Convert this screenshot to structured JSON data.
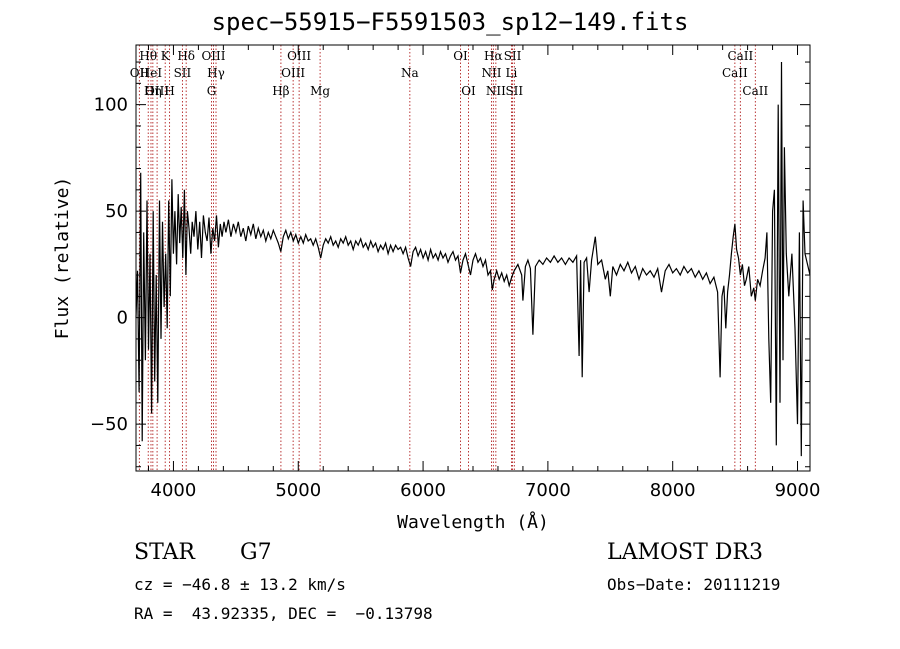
{
  "header": {
    "title": "spec−55915−F5591503_sp12−149.fits"
  },
  "info": {
    "class_label": "STAR",
    "subclass_label": "G7",
    "survey": "LAMOST DR3",
    "cz": "cz = −46.8 ± 13.2 km/s",
    "obs_date": "Obs−Date: 20111219",
    "coords": "RA =  43.92335, DEC =  −0.13798"
  },
  "chart_data": {
    "type": "line",
    "title": "spec−55915−F5591503_sp12−149.fits",
    "xlabel": "Wavelength (Å)",
    "ylabel": "Flux (relative)",
    "xlim": [
      3700,
      9100
    ],
    "ylim": [
      -72,
      128
    ],
    "xticks": [
      4000,
      5000,
      6000,
      7000,
      8000,
      9000
    ],
    "xtick_labels": [
      "4000",
      "5000",
      "6000",
      "7000",
      "8000",
      "9000"
    ],
    "yticks": [
      -50,
      0,
      50,
      100
    ],
    "ytick_labels": [
      "−50",
      "0",
      "50",
      "100"
    ],
    "line_markers": [
      {
        "name": "OII",
        "wave": 3727,
        "row": 2
      },
      {
        "name": "Hθ",
        "wave": 3798,
        "row": 1
      },
      {
        "name": "HeI",
        "wave": 3820,
        "row": 2
      },
      {
        "name": "Hη",
        "wave": 3835,
        "row": 3
      },
      {
        "name": "OIII",
        "wave": 3869,
        "row": 3
      },
      {
        "name": "K",
        "wave": 3934,
        "row": 1
      },
      {
        "name": "H",
        "wave": 3969,
        "row": 3
      },
      {
        "name": "SII",
        "wave": 4072,
        "row": 2
      },
      {
        "name": "Hδ",
        "wave": 4102,
        "row": 1
      },
      {
        "name": "G",
        "wave": 4305,
        "row": 3
      },
      {
        "name": "OIII",
        "wave": 4321,
        "row": 1
      },
      {
        "name": "Hγ",
        "wave": 4341,
        "row": 2
      },
      {
        "name": "Hβ",
        "wave": 4861,
        "row": 3
      },
      {
        "name": "OIII",
        "wave": 4959,
        "row": 2
      },
      {
        "name": "OIII",
        "wave": 5007,
        "row": 1
      },
      {
        "name": "Mg",
        "wave": 5175,
        "row": 3
      },
      {
        "name": "Na",
        "wave": 5894,
        "row": 2
      },
      {
        "name": "OI",
        "wave": 6300,
        "row": 1
      },
      {
        "name": "OI",
        "wave": 6364,
        "row": 3
      },
      {
        "name": "NII",
        "wave": 6548,
        "row": 2
      },
      {
        "name": "Hα",
        "wave": 6563,
        "row": 1
      },
      {
        "name": "NII",
        "wave": 6583,
        "row": 3
      },
      {
        "name": "Li",
        "wave": 6708,
        "row": 2
      },
      {
        "name": "SII",
        "wave": 6717,
        "row": 1
      },
      {
        "name": "SII",
        "wave": 6731,
        "row": 3
      },
      {
        "name": "CaII",
        "wave": 8498,
        "row": 2
      },
      {
        "name": "CaII",
        "wave": 8542,
        "row": 1
      },
      {
        "name": "CaII",
        "wave": 8662,
        "row": 3
      }
    ],
    "series": [
      {
        "name": "flux",
        "points": [
          [
            3700,
            0
          ],
          [
            3712,
            22
          ],
          [
            3725,
            -35
          ],
          [
            3738,
            68
          ],
          [
            3750,
            -58
          ],
          [
            3762,
            40
          ],
          [
            3775,
            -20
          ],
          [
            3788,
            55
          ],
          [
            3800,
            -15
          ],
          [
            3812,
            30
          ],
          [
            3825,
            -45
          ],
          [
            3838,
            50
          ],
          [
            3850,
            -30
          ],
          [
            3862,
            20
          ],
          [
            3875,
            -40
          ],
          [
            3888,
            55
          ],
          [
            3900,
            -10
          ],
          [
            3912,
            45
          ],
          [
            3925,
            5
          ],
          [
            3938,
            30
          ],
          [
            3950,
            -5
          ],
          [
            3962,
            55
          ],
          [
            3975,
            10
          ],
          [
            3988,
            65
          ],
          [
            4000,
            30
          ],
          [
            4012,
            50
          ],
          [
            4025,
            25
          ],
          [
            4038,
            58
          ],
          [
            4050,
            35
          ],
          [
            4062,
            52
          ],
          [
            4075,
            28
          ],
          [
            4088,
            60
          ],
          [
            4100,
            20
          ],
          [
            4112,
            50
          ],
          [
            4125,
            42
          ],
          [
            4138,
            30
          ],
          [
            4150,
            45
          ],
          [
            4165,
            38
          ],
          [
            4180,
            50
          ],
          [
            4195,
            32
          ],
          [
            4210,
            45
          ],
          [
            4225,
            28
          ],
          [
            4240,
            48
          ],
          [
            4255,
            40
          ],
          [
            4270,
            36
          ],
          [
            4285,
            47
          ],
          [
            4300,
            30
          ],
          [
            4315,
            42
          ],
          [
            4330,
            36
          ],
          [
            4345,
            48
          ],
          [
            4360,
            33
          ],
          [
            4375,
            44
          ],
          [
            4390,
            38
          ],
          [
            4405,
            45
          ],
          [
            4420,
            40
          ],
          [
            4440,
            46
          ],
          [
            4460,
            38
          ],
          [
            4480,
            44
          ],
          [
            4500,
            40
          ],
          [
            4520,
            45
          ],
          [
            4540,
            38
          ],
          [
            4560,
            42
          ],
          [
            4580,
            36
          ],
          [
            4600,
            43
          ],
          [
            4620,
            39
          ],
          [
            4640,
            44
          ],
          [
            4660,
            37
          ],
          [
            4680,
            42
          ],
          [
            4700,
            38
          ],
          [
            4720,
            41
          ],
          [
            4740,
            36
          ],
          [
            4760,
            40
          ],
          [
            4780,
            37
          ],
          [
            4800,
            41
          ],
          [
            4820,
            38
          ],
          [
            4840,
            35
          ],
          [
            4860,
            31
          ],
          [
            4880,
            38
          ],
          [
            4900,
            41
          ],
          [
            4920,
            37
          ],
          [
            4940,
            40
          ],
          [
            4960,
            36
          ],
          [
            4980,
            39
          ],
          [
            5000,
            35
          ],
          [
            5020,
            38
          ],
          [
            5040,
            35
          ],
          [
            5060,
            39
          ],
          [
            5080,
            36
          ],
          [
            5100,
            37
          ],
          [
            5120,
            34
          ],
          [
            5140,
            37
          ],
          [
            5160,
            33
          ],
          [
            5180,
            28
          ],
          [
            5200,
            34
          ],
          [
            5220,
            37
          ],
          [
            5240,
            35
          ],
          [
            5260,
            38
          ],
          [
            5280,
            34
          ],
          [
            5300,
            36
          ],
          [
            5320,
            33
          ],
          [
            5340,
            37
          ],
          [
            5360,
            35
          ],
          [
            5380,
            38
          ],
          [
            5400,
            34
          ],
          [
            5420,
            36
          ],
          [
            5440,
            32
          ],
          [
            5460,
            36
          ],
          [
            5480,
            34
          ],
          [
            5500,
            37
          ],
          [
            5520,
            33
          ],
          [
            5540,
            35
          ],
          [
            5560,
            32
          ],
          [
            5580,
            36
          ],
          [
            5600,
            33
          ],
          [
            5620,
            35
          ],
          [
            5640,
            31
          ],
          [
            5660,
            34
          ],
          [
            5680,
            32
          ],
          [
            5700,
            35
          ],
          [
            5720,
            30
          ],
          [
            5740,
            34
          ],
          [
            5760,
            31
          ],
          [
            5780,
            34
          ],
          [
            5800,
            32
          ],
          [
            5820,
            33
          ],
          [
            5840,
            30
          ],
          [
            5860,
            33
          ],
          [
            5880,
            28
          ],
          [
            5900,
            24
          ],
          [
            5920,
            31
          ],
          [
            5940,
            33
          ],
          [
            5960,
            29
          ],
          [
            5980,
            32
          ],
          [
            6000,
            28
          ],
          [
            6020,
            31
          ],
          [
            6040,
            27
          ],
          [
            6060,
            32
          ],
          [
            6080,
            28
          ],
          [
            6100,
            30
          ],
          [
            6120,
            27
          ],
          [
            6140,
            31
          ],
          [
            6160,
            28
          ],
          [
            6180,
            30
          ],
          [
            6200,
            26
          ],
          [
            6220,
            29
          ],
          [
            6240,
            31
          ],
          [
            6260,
            27
          ],
          [
            6280,
            29
          ],
          [
            6300,
            21
          ],
          [
            6320,
            27
          ],
          [
            6340,
            30
          ],
          [
            6360,
            25
          ],
          [
            6380,
            20
          ],
          [
            6400,
            27
          ],
          [
            6420,
            30
          ],
          [
            6440,
            26
          ],
          [
            6460,
            28
          ],
          [
            6480,
            24
          ],
          [
            6500,
            27
          ],
          [
            6520,
            20
          ],
          [
            6540,
            22
          ],
          [
            6555,
            13
          ],
          [
            6570,
            18
          ],
          [
            6590,
            22
          ],
          [
            6610,
            18
          ],
          [
            6630,
            21
          ],
          [
            6650,
            17
          ],
          [
            6670,
            20
          ],
          [
            6690,
            15
          ],
          [
            6710,
            19
          ],
          [
            6730,
            22
          ],
          [
            6760,
            25
          ],
          [
            6790,
            20
          ],
          [
            6800,
            8
          ],
          [
            6820,
            24
          ],
          [
            6840,
            27
          ],
          [
            6860,
            23
          ],
          [
            6880,
            -8
          ],
          [
            6900,
            24
          ],
          [
            6930,
            27
          ],
          [
            6960,
            25
          ],
          [
            6990,
            28
          ],
          [
            7020,
            26
          ],
          [
            7050,
            29
          ],
          [
            7080,
            26
          ],
          [
            7110,
            28
          ],
          [
            7140,
            25
          ],
          [
            7170,
            28
          ],
          [
            7200,
            26
          ],
          [
            7230,
            29
          ],
          [
            7250,
            -18
          ],
          [
            7262,
            27
          ],
          [
            7275,
            -28
          ],
          [
            7290,
            26
          ],
          [
            7310,
            28
          ],
          [
            7330,
            12
          ],
          [
            7350,
            27
          ],
          [
            7380,
            38
          ],
          [
            7400,
            25
          ],
          [
            7430,
            27
          ],
          [
            7460,
            18
          ],
          [
            7480,
            22
          ],
          [
            7500,
            10
          ],
          [
            7520,
            24
          ],
          [
            7550,
            20
          ],
          [
            7580,
            25
          ],
          [
            7610,
            22
          ],
          [
            7640,
            26
          ],
          [
            7670,
            21
          ],
          [
            7700,
            24
          ],
          [
            7730,
            18
          ],
          [
            7760,
            23
          ],
          [
            7790,
            20
          ],
          [
            7820,
            22
          ],
          [
            7850,
            19
          ],
          [
            7880,
            23
          ],
          [
            7910,
            12
          ],
          [
            7940,
            22
          ],
          [
            7970,
            25
          ],
          [
            8000,
            21
          ],
          [
            8030,
            23
          ],
          [
            8060,
            20
          ],
          [
            8090,
            24
          ],
          [
            8120,
            21
          ],
          [
            8150,
            23
          ],
          [
            8180,
            19
          ],
          [
            8210,
            22
          ],
          [
            8240,
            18
          ],
          [
            8270,
            21
          ],
          [
            8300,
            16
          ],
          [
            8330,
            19
          ],
          [
            8360,
            12
          ],
          [
            8380,
            -28
          ],
          [
            8395,
            10
          ],
          [
            8410,
            15
          ],
          [
            8425,
            -5
          ],
          [
            8440,
            12
          ],
          [
            8455,
            20
          ],
          [
            8470,
            30
          ],
          [
            8485,
            38
          ],
          [
            8498,
            44
          ],
          [
            8512,
            32
          ],
          [
            8527,
            28
          ],
          [
            8542,
            20
          ],
          [
            8558,
            25
          ],
          [
            8575,
            15
          ],
          [
            8590,
            18
          ],
          [
            8610,
            24
          ],
          [
            8630,
            10
          ],
          [
            8650,
            14
          ],
          [
            8662,
            8
          ],
          [
            8680,
            18
          ],
          [
            8700,
            15
          ],
          [
            8720,
            22
          ],
          [
            8740,
            28
          ],
          [
            8755,
            40
          ],
          [
            8770,
            -10
          ],
          [
            8785,
            -40
          ],
          [
            8800,
            50
          ],
          [
            8815,
            60
          ],
          [
            8830,
            -60
          ],
          [
            8845,
            100
          ],
          [
            8860,
            -40
          ],
          [
            8872,
            120
          ],
          [
            8884,
            -20
          ],
          [
            8895,
            80
          ],
          [
            8910,
            30
          ],
          [
            8930,
            10
          ],
          [
            8955,
            30
          ],
          [
            8980,
            -5
          ],
          [
            9000,
            -50
          ],
          [
            9015,
            40
          ],
          [
            9030,
            -65
          ],
          [
            9045,
            55
          ],
          [
            9060,
            30
          ],
          [
            9080,
            25
          ],
          [
            9100,
            20
          ]
        ]
      }
    ]
  }
}
